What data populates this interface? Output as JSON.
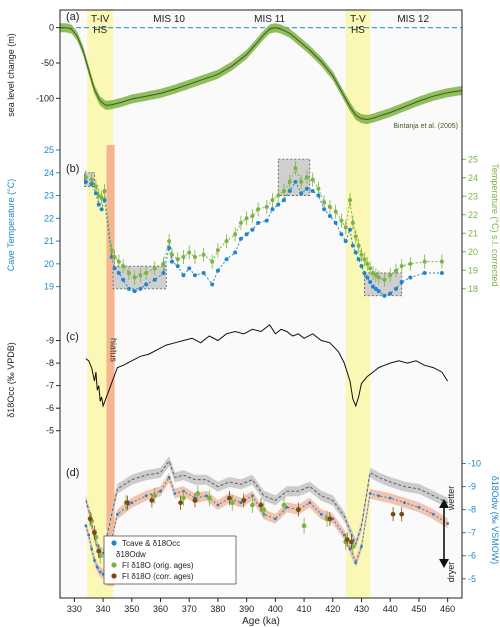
{
  "figure": {
    "x_axis": {
      "label": "Age (ka)",
      "range": [
        325,
        465
      ],
      "ticks": [
        330,
        340,
        350,
        360,
        370,
        380,
        390,
        400,
        410,
        420,
        430,
        440,
        450,
        460
      ]
    },
    "bands": [
      {
        "label": "T-IV\nHS",
        "from": 334.5,
        "to": 343.5,
        "color": "#fbf7b4"
      },
      {
        "label": "T-V\nHS",
        "from": 424.5,
        "to": 433,
        "color": "#fbf7b4"
      }
    ],
    "mis_labels": [
      {
        "label": "MIS 10",
        "x": 363
      },
      {
        "label": "MIS 11",
        "x": 398
      },
      {
        "label": "MIS 12",
        "x": 448
      }
    ],
    "hiatus": {
      "label": "hiatus",
      "from": 341.2,
      "to": 344,
      "color": "#f6b58f"
    },
    "colors": {
      "green": "#7cb342",
      "green_dark": "#3e5a22",
      "blue": "#1f87c9",
      "brown": "#7b4a12",
      "grey_band": "#cfcfcf",
      "pink_band": "#f4c3ae",
      "black": "#111111"
    }
  },
  "chart_data": [
    {
      "type": "line",
      "panel": "(a)",
      "ylabel": "sea level change (m)",
      "ylim": [
        -142,
        8
      ],
      "yticks": [
        0,
        -50,
        -100
      ],
      "reference_line": 0,
      "annotation": "Bintanja et al. (2005)",
      "series": [
        {
          "x": [
            325,
            327,
            329,
            331,
            333,
            335,
            337,
            339,
            341,
            343,
            346,
            350,
            355,
            360,
            365,
            370,
            375,
            380,
            385,
            390,
            393,
            396,
            398,
            400,
            402,
            405,
            408,
            412,
            416,
            420,
            423,
            426,
            428,
            430,
            432,
            434,
            437,
            440,
            445,
            450,
            455,
            460,
            465
          ],
          "values": [
            0,
            0,
            -2,
            -12,
            -32,
            -60,
            -88,
            -104,
            -110,
            -109,
            -106,
            -101,
            -97,
            -93,
            -87,
            -80,
            -73,
            -66,
            -54,
            -38,
            -24,
            -10,
            -2,
            0,
            -2,
            -8,
            -18,
            -32,
            -48,
            -68,
            -90,
            -112,
            -124,
            -129,
            -130,
            -128,
            -124,
            -120,
            -112,
            -104,
            -97,
            -92,
            -89
          ]
        }
      ]
    },
    {
      "type": "line",
      "panel": "(b)",
      "ylabel": "Cave Temperature (°C)",
      "ylabel_right": "Temperature (°C) s.l. corrected",
      "ylim_left": [
        18.5,
        25
      ],
      "yticks_left": [
        19,
        20,
        21,
        22,
        23,
        24,
        25
      ],
      "ylim_right": [
        17.5,
        25.5
      ],
      "yticks_right": [
        18,
        19,
        20,
        21,
        22,
        23,
        24,
        25
      ],
      "boxes": [
        {
          "x": [
            333.5,
            337
          ],
          "y": [
            23.4,
            24
          ]
        },
        {
          "x": [
            343.5,
            362
          ],
          "y": [
            18.9,
            19.9
          ]
        },
        {
          "x": [
            401,
            412
          ],
          "y": [
            23,
            24.6
          ]
        },
        {
          "x": [
            431,
            444
          ],
          "y": [
            18.6,
            19.6
          ]
        }
      ],
      "series": [
        {
          "name": "cave temperature",
          "x": [
            334,
            336,
            337.5,
            338.5,
            339.5,
            340.5,
            343,
            344,
            345.5,
            347,
            349,
            351,
            353,
            355,
            358,
            361,
            363,
            364,
            366,
            368,
            370,
            372,
            375,
            378,
            380,
            383,
            386,
            388,
            390,
            392,
            394,
            397,
            399,
            401,
            403,
            405,
            407,
            409,
            411,
            413,
            415,
            417,
            419,
            421,
            423,
            424.5,
            426,
            427,
            428,
            429,
            430,
            431,
            432,
            433,
            434,
            435,
            436,
            438,
            440,
            442,
            444,
            447,
            452,
            458
          ],
          "values": [
            23.6,
            23.5,
            23.1,
            22.6,
            22.4,
            22.8,
            20.3,
            19.8,
            19.6,
            19.3,
            18.9,
            18.8,
            18.9,
            19.1,
            19.3,
            19.6,
            20.7,
            20.1,
            19.9,
            19.5,
            19.8,
            19.5,
            19.6,
            19.1,
            19.7,
            20.2,
            20.5,
            21.1,
            21.3,
            21.5,
            21.8,
            21.9,
            22.4,
            22.6,
            22.8,
            23.2,
            23.6,
            23.1,
            23.3,
            23.2,
            23.0,
            22.4,
            22.1,
            21.8,
            21.3,
            21.0,
            21.5,
            20.8,
            20.5,
            20.2,
            19.9,
            19.6,
            19.4,
            19.2,
            19.0,
            18.9,
            18.8,
            18.6,
            18.7,
            18.9,
            19.2,
            19.4,
            19.6,
            19.6
          ]
        },
        {
          "name": "s.l. corrected temperature",
          "x": [
            334,
            336,
            337.5,
            338.5,
            339.5,
            340.5,
            343,
            344,
            345.5,
            347,
            349,
            351,
            353,
            355,
            358,
            361,
            363,
            364,
            366,
            368,
            370,
            372,
            375,
            378,
            380,
            383,
            386,
            388,
            390,
            392,
            394,
            397,
            399,
            401,
            403,
            405,
            407,
            409,
            411,
            413,
            415,
            417,
            419,
            421,
            423,
            424.5,
            426,
            427,
            428,
            429,
            430,
            431,
            432,
            433,
            434,
            435,
            436,
            438,
            440,
            442,
            444,
            447,
            452,
            458
          ],
          "values": [
            23.8,
            23.7,
            23.4,
            23.0,
            22.9,
            23.2,
            20.6,
            20.3,
            20.1,
            19.9,
            19.6,
            19.4,
            19.5,
            19.6,
            19.8,
            20.0,
            21.0,
            20.4,
            20.2,
            20.3,
            20.5,
            20.3,
            20.4,
            20.1,
            20.6,
            21.0,
            21.3,
            21.8,
            22.0,
            22.1,
            22.4,
            22.5,
            22.8,
            23.0,
            23.2,
            23.6,
            24.2,
            23.6,
            23.8,
            23.7,
            23.3,
            22.7,
            22.5,
            22.3,
            21.9,
            21.6,
            22.8,
            21.8,
            21.2,
            20.8,
            20.4,
            20.2,
            20.0,
            19.8,
            19.6,
            19.5,
            19.4,
            19.3,
            19.5,
            19.7,
            19.9,
            20.0,
            20.1,
            20.1
          ]
        }
      ]
    },
    {
      "type": "line",
      "panel": "(c)",
      "ylabel": "δ18Occ (‰ VPDB)",
      "ylim": [
        -4.5,
        -10
      ],
      "yticks": [
        -5,
        -6,
        -7,
        -8,
        -9
      ],
      "series": [
        {
          "x": [
            334,
            335,
            336,
            337,
            337.5,
            338,
            338.5,
            339,
            339.5,
            340,
            345,
            347,
            350,
            353,
            356,
            359,
            362,
            365,
            368,
            371,
            374,
            377,
            380,
            383,
            386,
            389,
            392,
            395,
            398,
            400,
            402,
            404,
            406,
            408,
            410,
            413,
            416,
            419,
            422,
            424,
            426,
            427,
            428,
            429,
            430,
            432,
            434,
            436,
            438,
            440,
            443,
            446,
            449,
            452,
            455,
            458,
            460
          ],
          "values": [
            -8.2,
            -8.1,
            -7.8,
            -7.2,
            -7.6,
            -6.8,
            -7.0,
            -6.3,
            -6.5,
            -6.1,
            -7.8,
            -7.9,
            -8.1,
            -8.3,
            -8.4,
            -8.6,
            -8.8,
            -8.9,
            -9.0,
            -9.1,
            -8.9,
            -9.2,
            -9.0,
            -9.3,
            -9.4,
            -9.3,
            -9.5,
            -9.4,
            -9.7,
            -9.3,
            -9.5,
            -9.4,
            -9.2,
            -9.3,
            -9.1,
            -9.3,
            -9.0,
            -8.9,
            -8.5,
            -8.0,
            -7.2,
            -6.4,
            -6.1,
            -6.5,
            -7.1,
            -7.4,
            -7.6,
            -7.8,
            -7.9,
            -8.0,
            -8.1,
            -8.0,
            -8.1,
            -7.9,
            -7.8,
            -7.6,
            -7.2
          ]
        }
      ]
    },
    {
      "type": "line",
      "panel": "(d)",
      "ylabel": "δ18Odw (‰ VSMOW)",
      "ylim": [
        -4.6,
        -10.5
      ],
      "yticks": [
        -5,
        -6,
        -7,
        -8,
        -9,
        -10
      ],
      "side_label_top": "wetter",
      "side_label_bottom": "dryer",
      "legend": [
        "Tcave & δ18Occ",
        "δ18Odw",
        "FI δ18O (orig. ages)",
        "FI δ18O (corr. ages)"
      ],
      "series": [
        {
          "name": "Tcave & δ18Occ",
          "x": [
            334,
            335,
            336,
            337,
            338,
            339,
            340,
            345,
            350,
            355,
            360,
            363,
            365,
            368,
            372,
            376,
            380,
            384,
            388,
            392,
            396,
            400,
            404,
            408,
            412,
            416,
            420,
            424,
            426,
            428,
            430,
            433,
            436,
            440,
            445,
            450,
            455,
            460
          ],
          "values": [
            -7.3,
            -6.9,
            -6.3,
            -5.8,
            -5.5,
            -5.3,
            -5.2,
            -7.8,
            -8.3,
            -8.6,
            -8.8,
            -9.4,
            -8.7,
            -8.8,
            -8.5,
            -8.6,
            -8.2,
            -8.5,
            -8.3,
            -8.6,
            -7.8,
            -7.6,
            -8.1,
            -8.0,
            -8.3,
            -7.8,
            -7.6,
            -6.9,
            -6.3,
            -5.7,
            -6.4,
            -8.7,
            -8.6,
            -8.5,
            -8.3,
            -8.1,
            -7.8,
            -7.4
          ]
        },
        {
          "name": "δ18Odw",
          "x": [
            334,
            335,
            336,
            337,
            338,
            339,
            340,
            345,
            350,
            355,
            360,
            363,
            365,
            368,
            372,
            376,
            380,
            384,
            388,
            392,
            396,
            400,
            404,
            408,
            412,
            416,
            420,
            424,
            426,
            428,
            430,
            433,
            436,
            440,
            445,
            450,
            455,
            460
          ],
          "values": [
            -8.4,
            -8.0,
            -7.4,
            -6.8,
            -6.4,
            -6.2,
            -6.1,
            -8.9,
            -9.3,
            -9.5,
            -9.6,
            -10.1,
            -9.4,
            -9.5,
            -9.3,
            -9.3,
            -9.0,
            -9.2,
            -9.1,
            -9.3,
            -8.6,
            -8.4,
            -8.8,
            -8.8,
            -9.0,
            -8.6,
            -8.4,
            -7.7,
            -7.1,
            -6.5,
            -7.3,
            -9.6,
            -9.4,
            -9.2,
            -9.0,
            -8.9,
            -8.6,
            -8.3
          ]
        },
        {
          "name": "FI δ18O (orig. ages)",
          "x": [
            336,
            337.5,
            339,
            348,
            358,
            368,
            373,
            377,
            385,
            392,
            396,
            403,
            410,
            418,
            424.5,
            427
          ],
          "values": [
            -7.5,
            -6.8,
            -6.0,
            -8.3,
            -8.6,
            -8.5,
            -8.7,
            -8.5,
            -8.3,
            -8.2,
            -8.0,
            -8.2,
            -7.3,
            -7.6,
            -6.6,
            -6.4
          ]
        },
        {
          "name": "FI δ18O (corr. ages)",
          "x": [
            335.5,
            337,
            338.5,
            348.5,
            357,
            367,
            372,
            384,
            389,
            395,
            408,
            419,
            425,
            426.5,
            441,
            444
          ],
          "values": [
            -7.6,
            -7.0,
            -6.2,
            -8.3,
            -8.4,
            -8.3,
            -8.4,
            -8.5,
            -8.4,
            -8.2,
            -8.0,
            -7.6,
            -6.7,
            -6.6,
            -7.8,
            -7.8
          ]
        }
      ]
    }
  ]
}
